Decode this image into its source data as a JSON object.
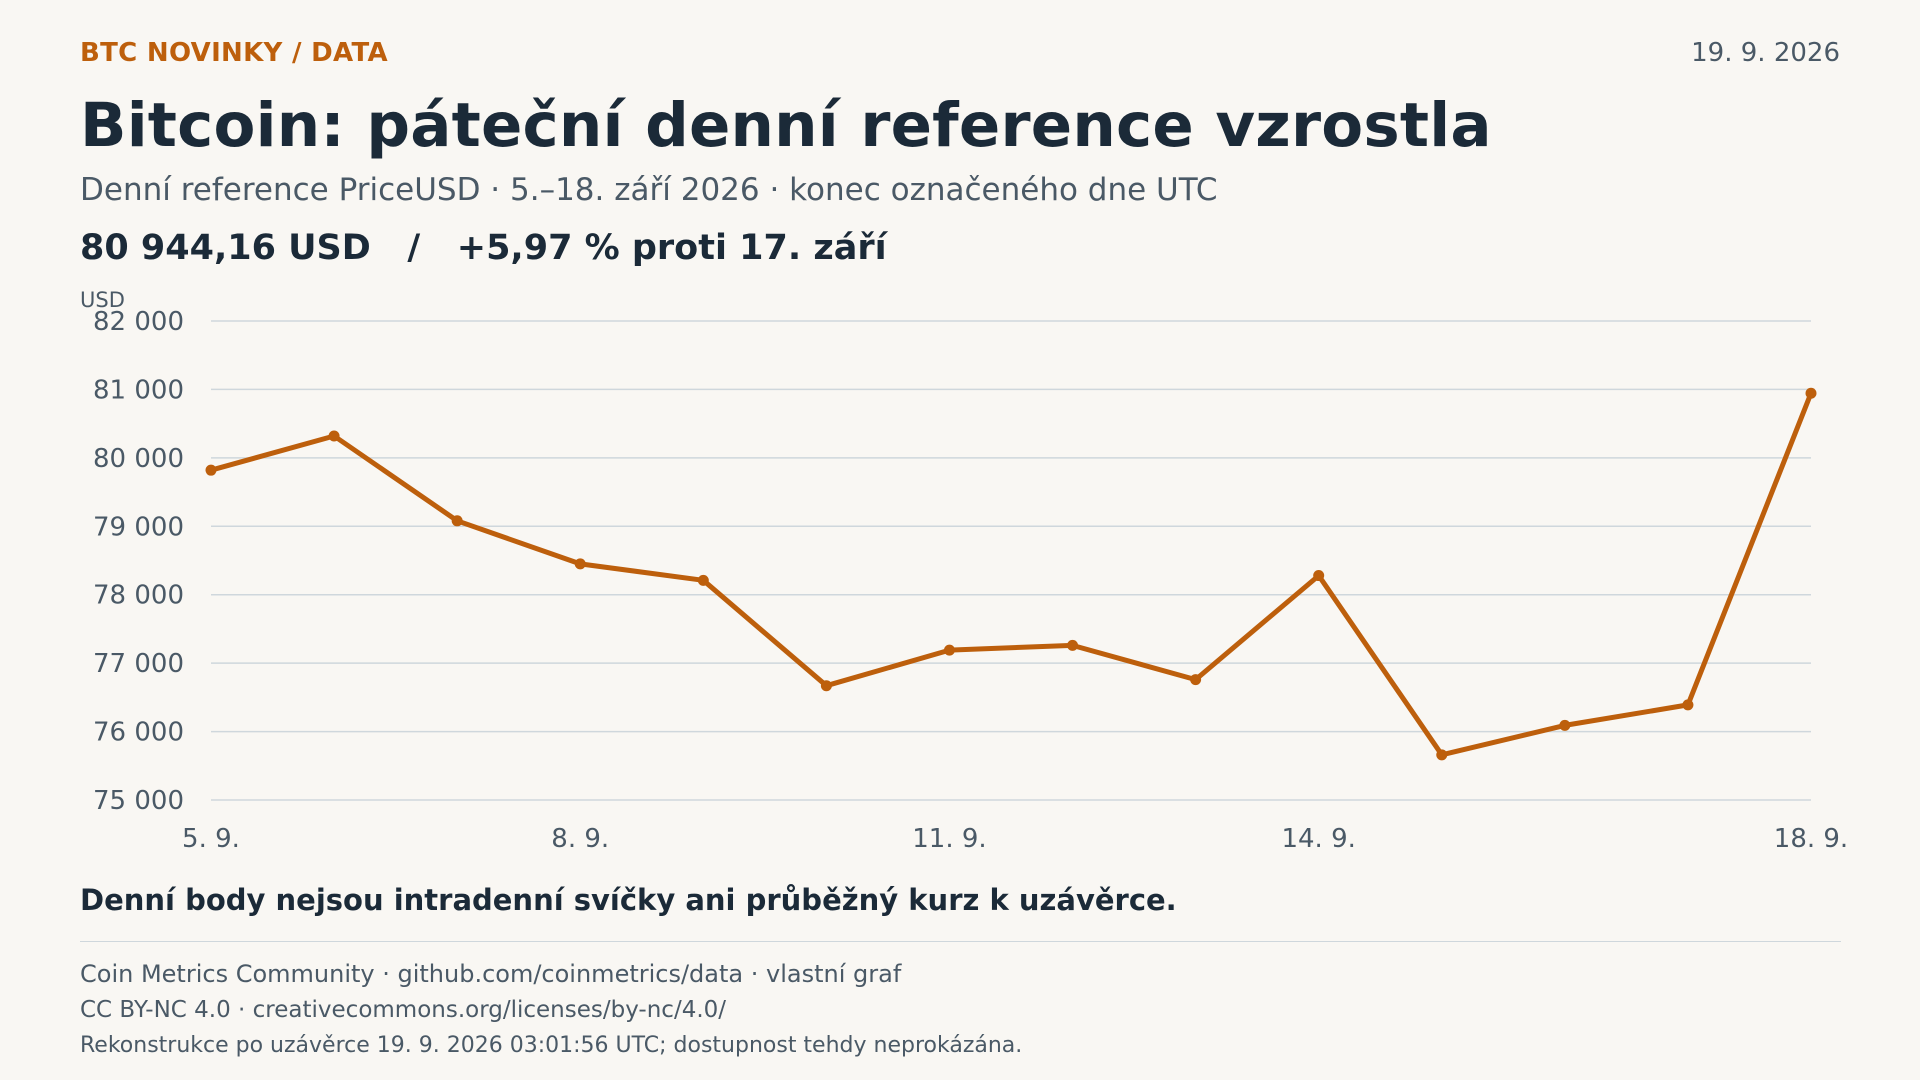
{
  "header": {
    "kicker": "BTC NOVINKY / DATA",
    "date": "19. 9. 2026",
    "title": "Bitcoin: páteční denní reference vzrostla",
    "subtitle": "Denní reference PriceUSD · 5.–18. září 2026 · konec označeného dne UTC",
    "headline_value": "80 944,16 USD",
    "headline_sep": "/",
    "headline_change": "+5,97 % proti 17. září"
  },
  "chart_data": {
    "type": "line",
    "title": "",
    "ylabel": "USD",
    "xlabel": "",
    "ylim": [
      75000,
      82000
    ],
    "y_ticks": [
      75000,
      76000,
      77000,
      78000,
      79000,
      80000,
      81000,
      82000
    ],
    "y_tick_labels": [
      "75 000",
      "76 000",
      "77 000",
      "78 000",
      "79 000",
      "80 000",
      "81 000",
      "82 000"
    ],
    "x": [
      "2026-09-05",
      "2026-09-06",
      "2026-09-07",
      "2026-09-08",
      "2026-09-09",
      "2026-09-10",
      "2026-09-11",
      "2026-09-12",
      "2026-09-13",
      "2026-09-14",
      "2026-09-15",
      "2026-09-16",
      "2026-09-17",
      "2026-09-18"
    ],
    "x_tick_labels": [
      "5. 9.",
      "8. 9.",
      "11. 9.",
      "14. 9.",
      "18. 9."
    ],
    "x_tick_dates": [
      "2026-09-05",
      "2026-09-08",
      "2026-09-11",
      "2026-09-14",
      "2026-09-18"
    ],
    "series": [
      {
        "values": [
          79820,
          80320,
          79080,
          78450,
          78210,
          76670,
          77190,
          77260,
          76760,
          78280,
          75660,
          76090,
          76390,
          80944.16
        ],
        "color": "#bd5f0c"
      }
    ],
    "grid": true,
    "gridColor": "#cfd7dc",
    "legend": "none"
  },
  "note": "Denní body nejsou intradenní svíčky ani průběžný kurz k uzávěrce.",
  "footer": {
    "line1": "Coin Metrics Community · github.com/coinmetrics/data · vlastní graf",
    "line2": "CC BY-NC 4.0 · creativecommons.org/licenses/by-nc/4.0/",
    "line3": "Rekonstrukce po uzávěrce 19. 9. 2026 03:01:56 UTC; dostupnost tehdy neprokázána."
  },
  "colors": {
    "accent": "#bd5f0c",
    "text": "#1b2a38",
    "muted": "#4a5966",
    "background": "#f9f7f3"
  }
}
